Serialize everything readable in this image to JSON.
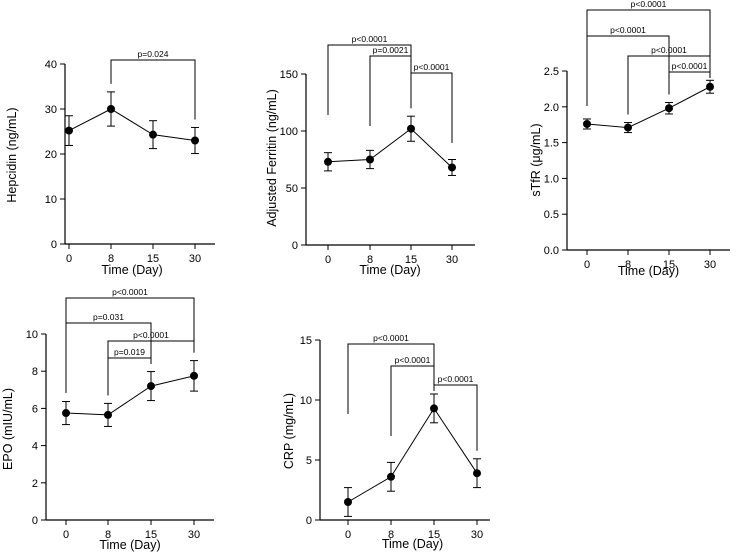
{
  "chart_data": [
    {
      "id": "hepcidin",
      "type": "line",
      "ylabel": "Hepcidin (ng/mL)",
      "xlabel": "Time (Day)",
      "categories": [
        "0",
        "8",
        "15",
        "30"
      ],
      "values": [
        25.2,
        30.0,
        24.3,
        23.0
      ],
      "error": [
        3.3,
        3.8,
        3.1,
        2.9
      ],
      "ylim": [
        0,
        40
      ],
      "yticks": [
        0,
        10,
        20,
        30,
        40
      ],
      "ytick_labels": [
        "0",
        "10",
        "20",
        "30",
        "40"
      ],
      "comparisons": [
        {
          "from": 1,
          "to": 3,
          "label": "p=0.024"
        }
      ]
    },
    {
      "id": "ferritin",
      "type": "line",
      "ylabel": "Adjusted Ferritin (ng/mL)",
      "xlabel": "Time (Day)",
      "categories": [
        "0",
        "8",
        "15",
        "30"
      ],
      "values": [
        73,
        75,
        102,
        68
      ],
      "error": [
        8,
        8,
        11,
        7
      ],
      "ylim": [
        0,
        150
      ],
      "yticks": [
        0,
        50,
        100,
        150
      ],
      "ytick_labels": [
        "0",
        "50",
        "100",
        "150"
      ],
      "comparisons": [
        {
          "from": 0,
          "to": 2,
          "label": "p<0.0001"
        },
        {
          "from": 1,
          "to": 2,
          "label": "p=0.0021"
        },
        {
          "from": 2,
          "to": 3,
          "label": "p<0.0001"
        }
      ]
    },
    {
      "id": "stfr",
      "type": "line",
      "ylabel": "sTfR (μg/mL)",
      "xlabel": "Time (Day)",
      "categories": [
        "0",
        "8",
        "15",
        "30"
      ],
      "values": [
        1.76,
        1.71,
        1.98,
        2.28
      ],
      "error": [
        0.07,
        0.07,
        0.08,
        0.09
      ],
      "ylim": [
        0,
        2.5
      ],
      "yticks": [
        0,
        0.5,
        1.0,
        1.5,
        2.0,
        2.5
      ],
      "ytick_labels": [
        "0.0",
        "0.5",
        "1.0",
        "1.5",
        "2.0",
        "2.5"
      ],
      "comparisons": [
        {
          "from": 0,
          "to": 3,
          "label": "p<0.0001"
        },
        {
          "from": 0,
          "to": 2,
          "label": "p<0.0001"
        },
        {
          "from": 1,
          "to": 3,
          "label": "p<0.0001"
        },
        {
          "from": 2,
          "to": 3,
          "label": "p<0.0001"
        }
      ]
    },
    {
      "id": "epo",
      "type": "line",
      "ylabel": "EPO (mIU/mL)",
      "xlabel": "Time (Day)",
      "categories": [
        "0",
        "8",
        "15",
        "30"
      ],
      "values": [
        5.75,
        5.65,
        7.2,
        7.75
      ],
      "error": [
        0.62,
        0.62,
        0.78,
        0.82
      ],
      "ylim": [
        0,
        10
      ],
      "yticks": [
        0,
        2,
        4,
        6,
        8,
        10
      ],
      "ytick_labels": [
        "0",
        "2",
        "4",
        "6",
        "8",
        "10"
      ],
      "comparisons": [
        {
          "from": 0,
          "to": 3,
          "label": "p<0.0001"
        },
        {
          "from": 0,
          "to": 2,
          "label": "p=0.031"
        },
        {
          "from": 1,
          "to": 3,
          "label": "p<0.0001"
        },
        {
          "from": 1,
          "to": 2,
          "label": "p=0.019"
        }
      ]
    },
    {
      "id": "crp",
      "type": "line",
      "ylabel": "CRP (mg/mL)",
      "xlabel": "Time (Day)",
      "categories": [
        "0",
        "8",
        "15",
        "30"
      ],
      "values": [
        1.5,
        3.6,
        9.3,
        3.9
      ],
      "error": [
        1.2,
        1.2,
        1.2,
        1.2
      ],
      "ylim": [
        0,
        15
      ],
      "yticks": [
        0,
        5,
        10,
        15
      ],
      "ytick_labels": [
        "0",
        "5",
        "10",
        "15"
      ],
      "comparisons": [
        {
          "from": 0,
          "to": 2,
          "label": "p<0.0001"
        },
        {
          "from": 1,
          "to": 2,
          "label": "p<0.0001"
        },
        {
          "from": 2,
          "to": 3,
          "label": "p<0.0001"
        }
      ]
    }
  ]
}
